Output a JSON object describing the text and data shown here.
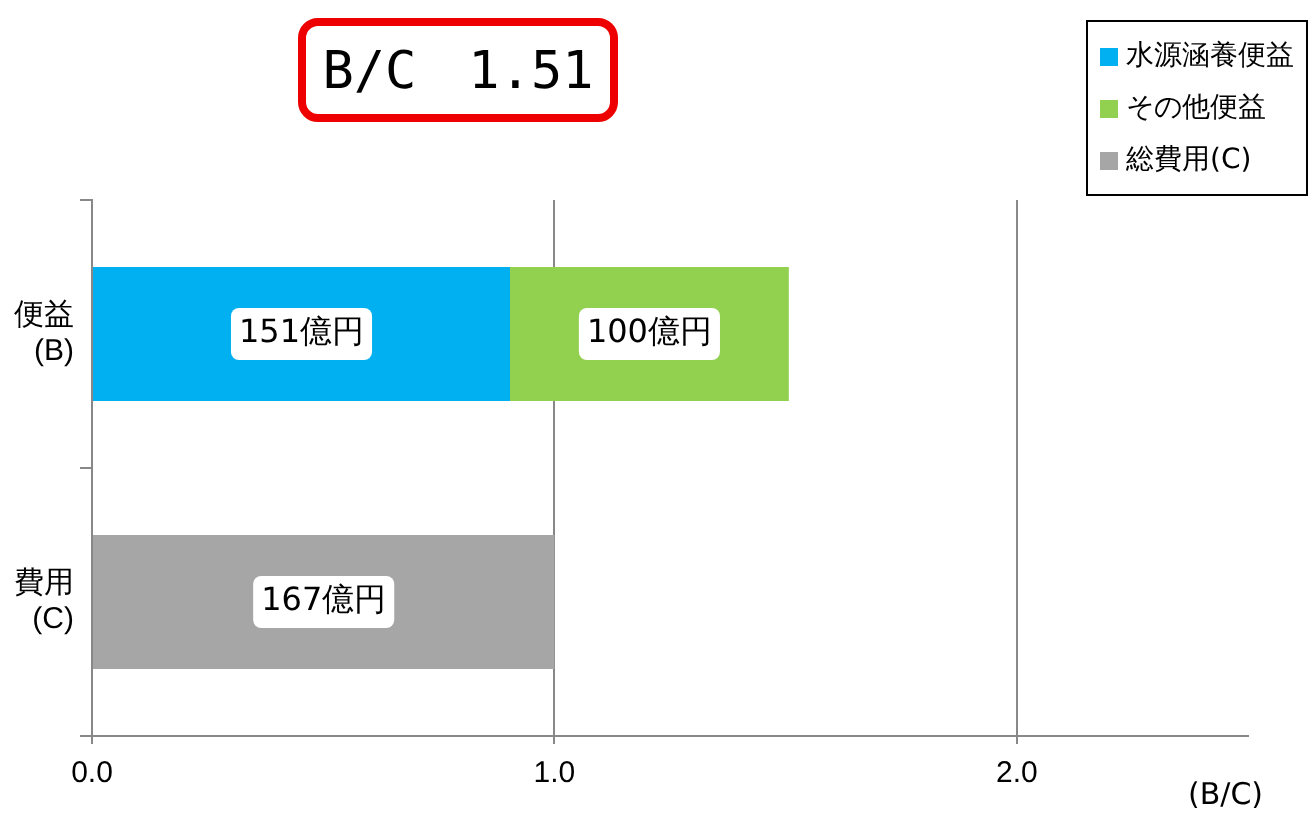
{
  "chart_data": {
    "type": "bar",
    "orientation": "horizontal",
    "stacked": true,
    "categories": [
      "便益\n(B)",
      "費用\n(C)"
    ],
    "series": [
      {
        "name": "水源涵養便益",
        "color": "#00b0f0",
        "values": [
          0.904,
          null
        ]
      },
      {
        "name": "その他便益",
        "color": "#92d050",
        "values": [
          0.603,
          null
        ]
      },
      {
        "name": "総費用(C)",
        "color": "#a6a6a6",
        "values": [
          null,
          1.0
        ]
      }
    ],
    "xlim": [
      0,
      2.5
    ],
    "xticks": [
      {
        "value": 0,
        "label": "0.0"
      },
      {
        "value": 1,
        "label": "1.0"
      },
      {
        "value": 2,
        "label": "2.0"
      }
    ],
    "xlabel": "(B/C)",
    "annotations": [
      "B/C　1.51",
      "151億円",
      "100億円",
      "167億円"
    ],
    "grid": "x",
    "legend": "top right"
  }
}
